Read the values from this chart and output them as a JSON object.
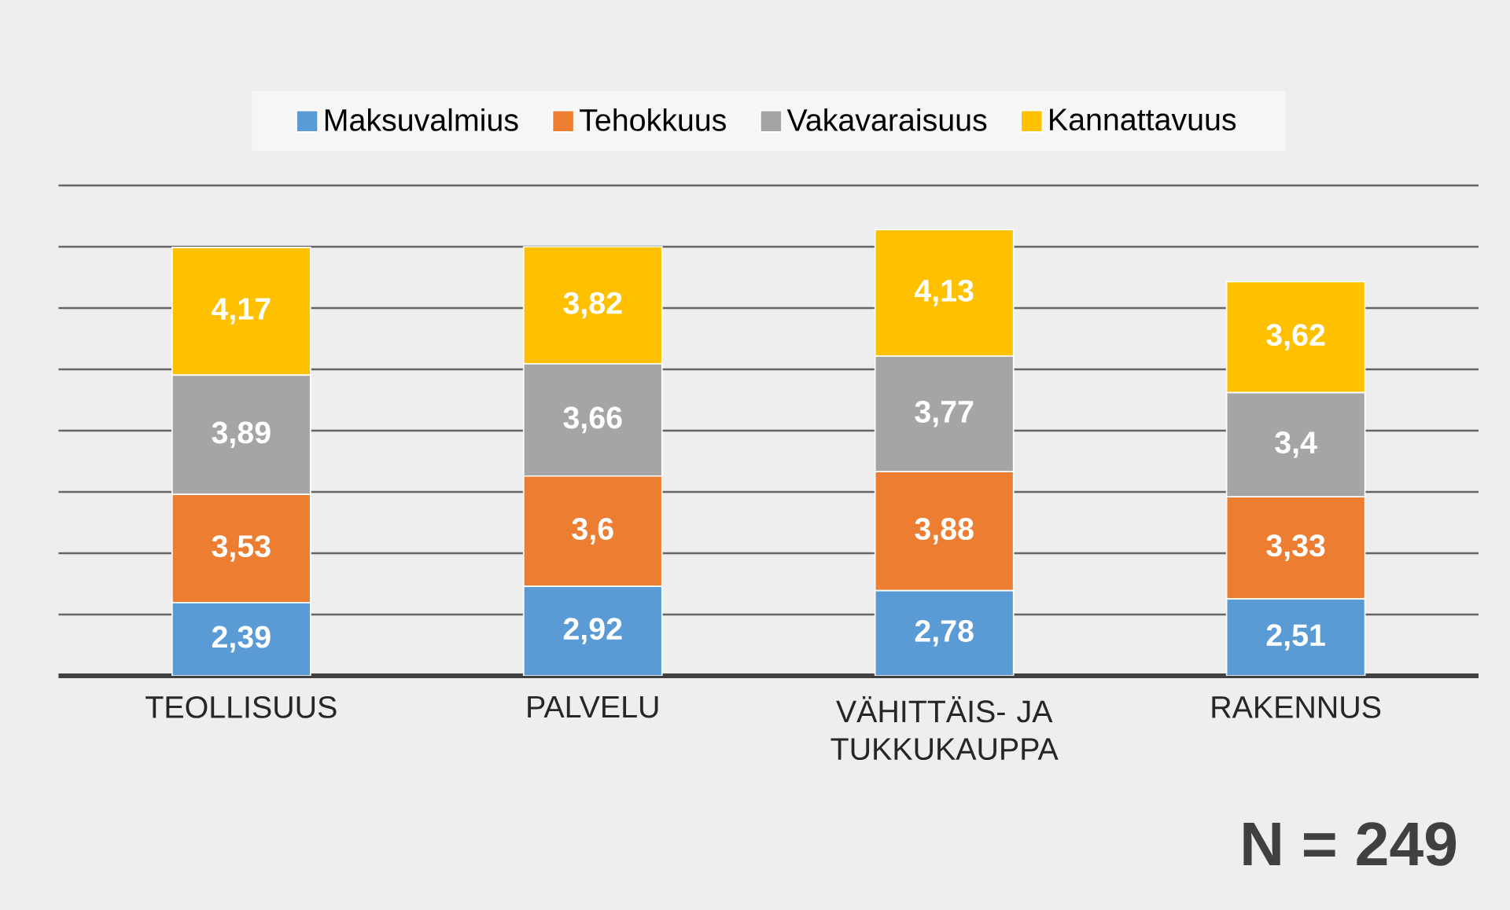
{
  "chart_data": {
    "type": "bar",
    "stacked": true,
    "categories": [
      "TEOLLISUUS",
      "PALVELU",
      "VÄHITTÄIS- JA TUKKUKAUPPA",
      "RAKENNUS"
    ],
    "series": [
      {
        "name": "Maksuvalmius",
        "color": "#5b9bd5",
        "values": [
          2.39,
          2.92,
          2.78,
          2.51
        ],
        "value_labels": [
          "2,39",
          "2,92",
          "2,78",
          "2,51"
        ]
      },
      {
        "name": "Tehokkuus",
        "color": "#ed7d31",
        "values": [
          3.53,
          3.6,
          3.88,
          3.33
        ],
        "value_labels": [
          "3,53",
          "3,6",
          "3,88",
          "3,33"
        ]
      },
      {
        "name": "Vakavaraisuus",
        "color": "#a5a5a5",
        "values": [
          3.89,
          3.66,
          3.77,
          3.4
        ],
        "value_labels": [
          "3,89",
          "3,66",
          "3,77",
          "3,4"
        ]
      },
      {
        "name": "Kannattavuus",
        "color": "#ffc000",
        "values": [
          4.17,
          3.82,
          4.13,
          3.62
        ],
        "value_labels": [
          "4,17",
          "3,82",
          "4,13",
          "3,62"
        ]
      }
    ],
    "ylim": [
      0,
      16
    ],
    "yticks": [
      {
        "value": 2,
        "label": null
      },
      {
        "value": 4,
        "label": null
      },
      {
        "value": 6,
        "label": null
      },
      {
        "value": 8,
        "label": null
      },
      {
        "value": 10,
        "label": null
      },
      {
        "value": 12,
        "label": null
      },
      {
        "value": 14,
        "label": null
      },
      {
        "value": 16,
        "label": null
      }
    ],
    "tick_labels": "x",
    "grid": "y",
    "legend": "top",
    "annotations": [
      "N = 249"
    ]
  }
}
